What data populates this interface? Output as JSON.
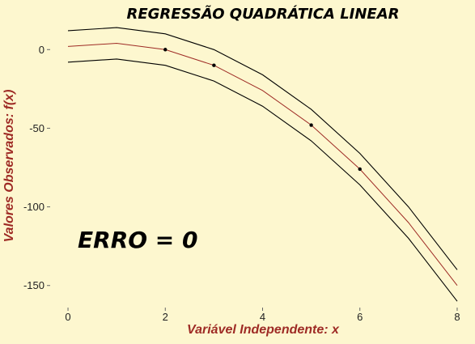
{
  "chart_data": {
    "type": "line",
    "title": "REGRESSÃO QUADRÁTICA LINEAR",
    "xlabel": "Variável Independente: x",
    "ylabel": "Valores Observados: f(x)",
    "annotation": "ERRO = 0",
    "xlim": [
      -0.3,
      8.3
    ],
    "ylim": [
      -163,
      13
    ],
    "xticks": [
      0,
      2,
      4,
      6,
      8
    ],
    "yticks": [
      0,
      -50,
      -100,
      -150
    ],
    "grid": false,
    "series": [
      {
        "role": "fit",
        "color": "#9e2b25",
        "x": [
          0,
          1,
          2,
          3,
          4,
          5,
          6,
          7,
          8
        ],
        "y": [
          2,
          4,
          0,
          -10,
          -26,
          -48,
          -76,
          -110,
          -150
        ]
      },
      {
        "role": "upper-band",
        "color": "#000000",
        "x": [
          0,
          1,
          2,
          3,
          4,
          5,
          6,
          7,
          8
        ],
        "y": [
          12,
          14,
          10,
          0,
          -16,
          -38,
          -66,
          -100,
          -140
        ]
      },
      {
        "role": "lower-band",
        "color": "#000000",
        "x": [
          0,
          1,
          2,
          3,
          4,
          5,
          6,
          7,
          8
        ],
        "y": [
          -8,
          -6,
          -10,
          -20,
          -36,
          -58,
          -86,
          -120,
          -160
        ]
      }
    ],
    "points": {
      "color": "#000000",
      "x": [
        2,
        3,
        5,
        6
      ],
      "y": [
        0,
        -10,
        -48,
        -76
      ]
    }
  }
}
